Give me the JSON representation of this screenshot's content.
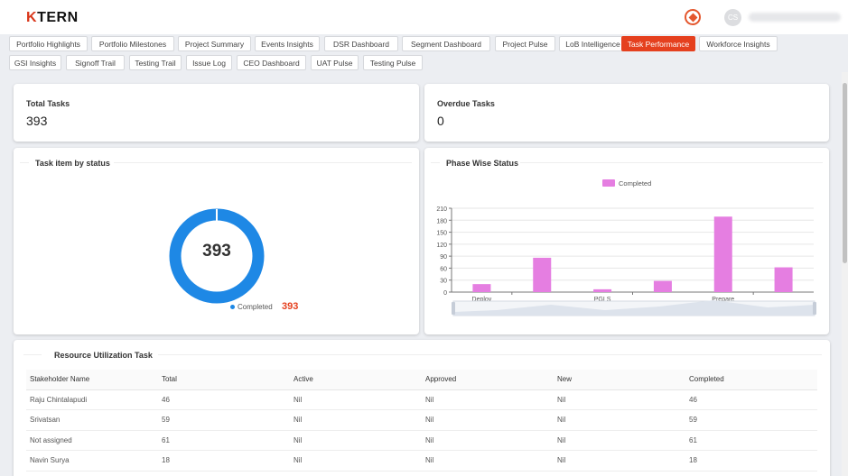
{
  "app": {
    "logo_mark": "K",
    "logo_text": "TERN",
    "avatar_initials": "CS"
  },
  "tabs": [
    {
      "label": "Portfolio Highlights",
      "active": false
    },
    {
      "label": "Portfolio Milestones",
      "active": false
    },
    {
      "label": "Project Summary",
      "active": false
    },
    {
      "label": "Events Insights",
      "active": false
    },
    {
      "label": "DSR Dashboard",
      "active": false
    },
    {
      "label": "Segment Dashboard",
      "active": false
    },
    {
      "label": "Project Pulse",
      "active": false
    },
    {
      "label": "LoB Intelligence",
      "active": false
    },
    {
      "label": "Task Performance",
      "active": true
    },
    {
      "label": "Workforce Insights",
      "active": false
    },
    {
      "label": "GSI Insights",
      "active": false
    },
    {
      "label": "Signoff Trail",
      "active": false
    },
    {
      "label": "Testing Trail",
      "active": false
    },
    {
      "label": "Issue Log",
      "active": false
    },
    {
      "label": "CEO Dashboard",
      "active": false
    },
    {
      "label": "UAT Pulse",
      "active": false
    },
    {
      "label": "Testing Pulse",
      "active": false
    }
  ],
  "kpis": {
    "total_tasks": {
      "label": "Total Tasks",
      "value": "393"
    },
    "overdue_tasks": {
      "label": "Overdue Tasks",
      "value": "0"
    }
  },
  "status_card": {
    "title": "Task item by status",
    "center_value": "393",
    "legend_label": "Completed",
    "legend_value": "393",
    "color": "#1e88e5"
  },
  "phase_card": {
    "title": "Phase Wise Status",
    "legend_label": "Completed",
    "bar_color": "#e57ee1"
  },
  "chart_data": {
    "type": "bar",
    "categories": [
      "Deploy",
      "",
      "PGLS",
      "",
      "Prepare",
      ""
    ],
    "series": [
      {
        "name": "Completed",
        "values": [
          20,
          86,
          7,
          28,
          189,
          62
        ]
      }
    ],
    "ylim": [
      0,
      210
    ],
    "yticks": [
      0,
      30,
      60,
      90,
      120,
      150,
      180,
      210
    ],
    "legend_position": "top-center",
    "grid": true
  },
  "resource_table": {
    "title": "Resource Utilization Task",
    "columns": [
      "Stakeholder Name",
      "Total",
      "Active",
      "Approved",
      "New",
      "Completed"
    ],
    "rows": [
      [
        "Raju Chintalapudi",
        "46",
        "Nil",
        "Nil",
        "Nil",
        "46"
      ],
      [
        "Srivatsan",
        "59",
        "Nil",
        "Nil",
        "Nil",
        "59"
      ],
      [
        "Not assigned",
        "61",
        "Nil",
        "Nil",
        "Nil",
        "61"
      ],
      [
        "Navin Surya",
        "18",
        "Nil",
        "Nil",
        "Nil",
        "18"
      ]
    ]
  }
}
